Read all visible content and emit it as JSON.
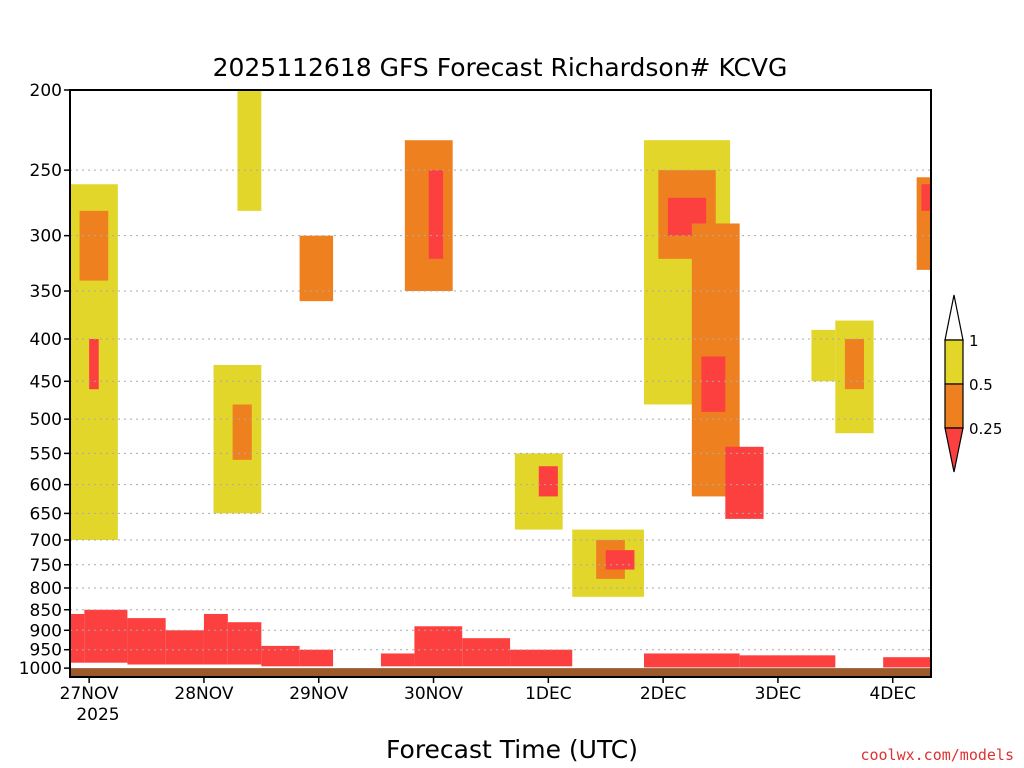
{
  "chart_data": {
    "type": "heatmap",
    "title": "2025112618 GFS Forecast Richardson# KCVG",
    "xlabel": "Forecast Time (UTC)",
    "ylabel": "",
    "x_ticks": [
      "27NOV",
      "28NOV",
      "29NOV",
      "30NOV",
      "1DEC",
      "2DEC",
      "3DEC",
      "4DEC"
    ],
    "x_tick_sub": "2025",
    "y_ticks": [
      200,
      250,
      300,
      350,
      400,
      450,
      500,
      550,
      600,
      650,
      700,
      750,
      800,
      850,
      900,
      950,
      1000
    ],
    "y_range_hPa": [
      200,
      1025
    ],
    "x_range_hours_from_start": [
      0,
      180
    ],
    "colorbar": {
      "labels": [
        "1",
        "0.5",
        "0.25"
      ],
      "colors": [
        "#ffffff",
        "#e3d62a",
        "#ee8020",
        "#fc4040"
      ],
      "bounds": [
        1,
        0.5,
        0.25
      ]
    },
    "ground_color": "#9b5a2c",
    "colors": {
      "low": "#fc4040",
      "mid": "#ee8020",
      "high": "#e3d62a",
      "grid": "#aaaaaa"
    },
    "regions": [
      {
        "t": 0,
        "t2": 3,
        "p": 860,
        "p2": 985,
        "class": "low"
      },
      {
        "t": 3,
        "t2": 12,
        "p": 850,
        "p2": 985,
        "class": "low"
      },
      {
        "t": 12,
        "t2": 20,
        "p": 870,
        "p2": 990,
        "class": "low"
      },
      {
        "t": 20,
        "t2": 28,
        "p": 900,
        "p2": 990,
        "class": "low"
      },
      {
        "t": 28,
        "t2": 33,
        "p": 860,
        "p2": 990,
        "class": "low"
      },
      {
        "t": 33,
        "t2": 40,
        "p": 880,
        "p2": 990,
        "class": "low"
      },
      {
        "t": 40,
        "t2": 48,
        "p": 940,
        "p2": 995,
        "class": "low"
      },
      {
        "t": 48,
        "t2": 55,
        "p": 950,
        "p2": 995,
        "class": "low"
      },
      {
        "t": 65,
        "t2": 72,
        "p": 960,
        "p2": 995,
        "class": "low"
      },
      {
        "t": 72,
        "t2": 82,
        "p": 890,
        "p2": 995,
        "class": "low"
      },
      {
        "t": 82,
        "t2": 92,
        "p": 920,
        "p2": 995,
        "class": "low"
      },
      {
        "t": 92,
        "t2": 105,
        "p": 950,
        "p2": 995,
        "class": "low"
      },
      {
        "t": 120,
        "t2": 140,
        "p": 960,
        "p2": 998,
        "class": "low"
      },
      {
        "t": 140,
        "t2": 160,
        "p": 965,
        "p2": 998,
        "class": "low"
      },
      {
        "t": 170,
        "t2": 180,
        "p": 970,
        "p2": 998,
        "class": "low"
      },
      {
        "t": 0,
        "t2": 10,
        "p": 260,
        "p2": 700,
        "class": "high"
      },
      {
        "t": 2,
        "t2": 8,
        "p": 280,
        "p2": 340,
        "class": "mid"
      },
      {
        "t": 4,
        "t2": 6,
        "p": 400,
        "p2": 460,
        "class": "low"
      },
      {
        "t": 30,
        "t2": 40,
        "p": 430,
        "p2": 650,
        "class": "high"
      },
      {
        "t": 34,
        "t2": 38,
        "p": 480,
        "p2": 560,
        "class": "mid"
      },
      {
        "t": 35,
        "t2": 40,
        "p": 200,
        "p2": 280,
        "class": "high"
      },
      {
        "t": 48,
        "t2": 55,
        "p": 300,
        "p2": 360,
        "class": "mid"
      },
      {
        "t": 70,
        "t2": 80,
        "p": 230,
        "p2": 350,
        "class": "mid"
      },
      {
        "t": 75,
        "t2": 78,
        "p": 250,
        "p2": 320,
        "class": "low"
      },
      {
        "t": 93,
        "t2": 103,
        "p": 550,
        "p2": 680,
        "class": "high"
      },
      {
        "t": 98,
        "t2": 102,
        "p": 570,
        "p2": 620,
        "class": "low"
      },
      {
        "t": 105,
        "t2": 120,
        "p": 680,
        "p2": 820,
        "class": "high"
      },
      {
        "t": 110,
        "t2": 116,
        "p": 700,
        "p2": 780,
        "class": "mid"
      },
      {
        "t": 112,
        "t2": 118,
        "p": 720,
        "p2": 760,
        "class": "low"
      },
      {
        "t": 120,
        "t2": 138,
        "p": 230,
        "p2": 480,
        "class": "high"
      },
      {
        "t": 123,
        "t2": 135,
        "p": 250,
        "p2": 320,
        "class": "mid"
      },
      {
        "t": 125,
        "t2": 133,
        "p": 270,
        "p2": 300,
        "class": "low"
      },
      {
        "t": 130,
        "t2": 140,
        "p": 290,
        "p2": 620,
        "class": "mid"
      },
      {
        "t": 132,
        "t2": 137,
        "p": 420,
        "p2": 490,
        "class": "low"
      },
      {
        "t": 137,
        "t2": 145,
        "p": 540,
        "p2": 660,
        "class": "low"
      },
      {
        "t": 155,
        "t2": 160,
        "p": 390,
        "p2": 450,
        "class": "high"
      },
      {
        "t": 160,
        "t2": 168,
        "p": 380,
        "p2": 520,
        "class": "high"
      },
      {
        "t": 162,
        "t2": 166,
        "p": 400,
        "p2": 460,
        "class": "mid"
      },
      {
        "t": 177,
        "t2": 180,
        "p": 255,
        "p2": 330,
        "class": "mid"
      },
      {
        "t": 178,
        "t2": 180,
        "p": 260,
        "p2": 280,
        "class": "low"
      }
    ]
  }
}
